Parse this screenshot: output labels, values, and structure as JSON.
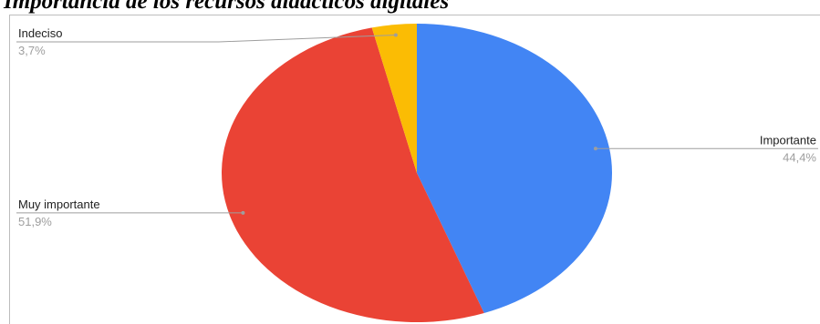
{
  "chart_data": {
    "type": "pie",
    "title": "Importancia de los recursos didácticos digitales",
    "slices": [
      {
        "label": "Importante",
        "value": 44.4,
        "value_text": "44,4%",
        "color": "#4285f4",
        "label_side": "right"
      },
      {
        "label": "Muy importante",
        "value": 51.9,
        "value_text": "51,9%",
        "color": "#ea4335",
        "label_side": "left"
      },
      {
        "label": "Indeciso",
        "value": 3.7,
        "value_text": "3,7%",
        "color": "#fbbc04",
        "label_side": "top-left"
      }
    ],
    "start_angle_deg": 0,
    "direction": "clockwise",
    "label_color": "#212121",
    "value_color": "#9e9e9e",
    "leader_color": "#9e9e9e"
  }
}
